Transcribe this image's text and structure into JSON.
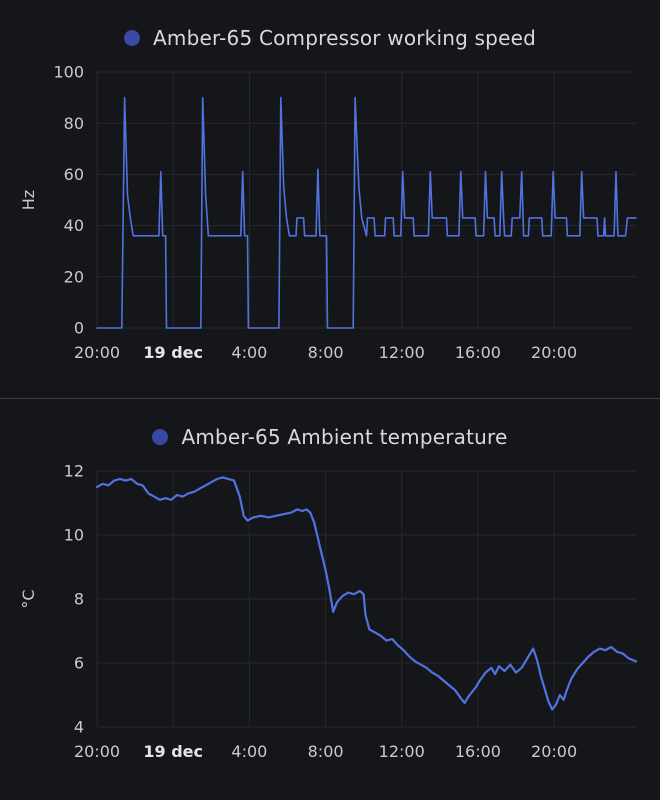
{
  "page": {
    "background": "#141619",
    "divider_color": "#3a3d42"
  },
  "chart_data": [
    {
      "type": "line",
      "title": "Amber-65 Compressor working speed",
      "ylabel": "Hz",
      "ylim": [
        0,
        100
      ],
      "yticks": [
        0,
        20,
        40,
        60,
        80,
        100
      ],
      "xlim": [
        0,
        28.3
      ],
      "xticks": [
        {
          "t": 0,
          "label": "20:00"
        },
        {
          "t": 4,
          "label": "19 dec",
          "bold": true
        },
        {
          "t": 8,
          "label": "4:00"
        },
        {
          "t": 12,
          "label": "8:00"
        },
        {
          "t": 16,
          "label": "12:00"
        },
        {
          "t": 20,
          "label": "16:00"
        },
        {
          "t": 24,
          "label": "20:00"
        }
      ],
      "grid_color": "#26282d",
      "tick_color": "#c9cacc",
      "day_color": "#e4e5e7",
      "legend_color": "#3a49a3",
      "series": [
        {
          "name": "Amber-65 Compressor working speed",
          "color": "#5272e0",
          "width": 1.6,
          "points": [
            [
              0,
              0
            ],
            [
              1.3,
              0
            ],
            [
              1.45,
              90
            ],
            [
              1.6,
              52
            ],
            [
              1.75,
              43
            ],
            [
              1.9,
              36
            ],
            [
              3.25,
              36
            ],
            [
              3.35,
              61
            ],
            [
              3.45,
              36
            ],
            [
              3.6,
              36
            ],
            [
              3.65,
              0
            ],
            [
              5.45,
              0
            ],
            [
              5.55,
              90
            ],
            [
              5.7,
              52
            ],
            [
              5.85,
              36
            ],
            [
              7.55,
              36
            ],
            [
              7.65,
              61
            ],
            [
              7.75,
              36
            ],
            [
              7.9,
              36
            ],
            [
              7.95,
              0
            ],
            [
              9.55,
              0
            ],
            [
              9.65,
              90
            ],
            [
              9.8,
              55
            ],
            [
              9.95,
              43
            ],
            [
              10.1,
              36
            ],
            [
              10.45,
              36
            ],
            [
              10.5,
              43
            ],
            [
              10.85,
              43
            ],
            [
              10.9,
              36
            ],
            [
              11.5,
              36
            ],
            [
              11.6,
              62
            ],
            [
              11.7,
              36
            ],
            [
              12.05,
              36
            ],
            [
              12.1,
              0
            ],
            [
              13.45,
              0
            ],
            [
              13.55,
              90
            ],
            [
              13.65,
              72
            ],
            [
              13.75,
              55
            ],
            [
              13.9,
              43
            ],
            [
              14.15,
              36
            ],
            [
              14.2,
              43
            ],
            [
              14.55,
              43
            ],
            [
              14.6,
              36
            ],
            [
              15.1,
              36
            ],
            [
              15.15,
              43
            ],
            [
              15.55,
              43
            ],
            [
              15.6,
              36
            ],
            [
              15.95,
              36
            ],
            [
              16.05,
              61
            ],
            [
              16.15,
              43
            ],
            [
              16.6,
              43
            ],
            [
              16.65,
              36
            ],
            [
              17.4,
              36
            ],
            [
              17.5,
              61
            ],
            [
              17.6,
              43
            ],
            [
              18.35,
              43
            ],
            [
              18.4,
              36
            ],
            [
              19.0,
              36
            ],
            [
              19.1,
              61
            ],
            [
              19.2,
              43
            ],
            [
              19.85,
              43
            ],
            [
              19.9,
              36
            ],
            [
              20.3,
              36
            ],
            [
              20.4,
              61
            ],
            [
              20.5,
              43
            ],
            [
              20.85,
              43
            ],
            [
              20.9,
              36
            ],
            [
              21.15,
              36
            ],
            [
              21.25,
              61
            ],
            [
              21.35,
              43
            ],
            [
              21.4,
              36
            ],
            [
              21.75,
              36
            ],
            [
              21.8,
              43
            ],
            [
              22.2,
              43
            ],
            [
              22.3,
              61
            ],
            [
              22.4,
              36
            ],
            [
              22.65,
              36
            ],
            [
              22.7,
              43
            ],
            [
              23.35,
              43
            ],
            [
              23.4,
              36
            ],
            [
              23.85,
              36
            ],
            [
              23.95,
              61
            ],
            [
              24.05,
              43
            ],
            [
              24.65,
              43
            ],
            [
              24.7,
              36
            ],
            [
              25.35,
              36
            ],
            [
              25.45,
              61
            ],
            [
              25.55,
              43
            ],
            [
              26.25,
              43
            ],
            [
              26.3,
              36
            ],
            [
              26.6,
              36
            ],
            [
              26.65,
              43
            ],
            [
              26.7,
              36
            ],
            [
              27.15,
              36
            ],
            [
              27.25,
              61
            ],
            [
              27.35,
              36
            ],
            [
              27.75,
              36
            ],
            [
              27.85,
              43
            ],
            [
              28.3,
              43
            ]
          ]
        }
      ]
    },
    {
      "type": "line",
      "title": "Amber-65 Ambient temperature",
      "ylabel": "°C",
      "ylim": [
        4,
        12
      ],
      "yticks": [
        4,
        6,
        8,
        10,
        12
      ],
      "xlim": [
        0,
        28.3
      ],
      "xticks": [
        {
          "t": 0,
          "label": "20:00"
        },
        {
          "t": 4,
          "label": "19 dec",
          "bold": true
        },
        {
          "t": 8,
          "label": "4:00"
        },
        {
          "t": 12,
          "label": "8:00"
        },
        {
          "t": 16,
          "label": "12:00"
        },
        {
          "t": 20,
          "label": "16:00"
        },
        {
          "t": 24,
          "label": "20:00"
        }
      ],
      "grid_color": "#26282d",
      "tick_color": "#c9cacc",
      "day_color": "#e4e5e7",
      "legend_color": "#3a49a3",
      "series": [
        {
          "name": "Amber-65 Ambient temperature",
          "color": "#5272e0",
          "width": 2.2,
          "points": [
            [
              0,
              11.5
            ],
            [
              0.3,
              11.6
            ],
            [
              0.6,
              11.55
            ],
            [
              0.9,
              11.7
            ],
            [
              1.2,
              11.75
            ],
            [
              1.5,
              11.7
            ],
            [
              1.8,
              11.75
            ],
            [
              2.1,
              11.6
            ],
            [
              2.4,
              11.55
            ],
            [
              2.7,
              11.3
            ],
            [
              3.0,
              11.2
            ],
            [
              3.3,
              11.1
            ],
            [
              3.6,
              11.15
            ],
            [
              3.9,
              11.1
            ],
            [
              4.2,
              11.25
            ],
            [
              4.5,
              11.2
            ],
            [
              4.8,
              11.3
            ],
            [
              5.1,
              11.35
            ],
            [
              5.4,
              11.45
            ],
            [
              5.7,
              11.55
            ],
            [
              6.0,
              11.65
            ],
            [
              6.3,
              11.75
            ],
            [
              6.6,
              11.8
            ],
            [
              6.9,
              11.75
            ],
            [
              7.2,
              11.7
            ],
            [
              7.5,
              11.2
            ],
            [
              7.7,
              10.6
            ],
            [
              7.9,
              10.45
            ],
            [
              8.2,
              10.55
            ],
            [
              8.6,
              10.6
            ],
            [
              9.0,
              10.55
            ],
            [
              9.4,
              10.6
            ],
            [
              9.8,
              10.65
            ],
            [
              10.2,
              10.7
            ],
            [
              10.5,
              10.8
            ],
            [
              10.8,
              10.75
            ],
            [
              11.0,
              10.8
            ],
            [
              11.2,
              10.7
            ],
            [
              11.4,
              10.4
            ],
            [
              11.6,
              9.9
            ],
            [
              11.8,
              9.4
            ],
            [
              12.0,
              8.9
            ],
            [
              12.2,
              8.3
            ],
            [
              12.4,
              7.6
            ],
            [
              12.6,
              7.9
            ],
            [
              12.9,
              8.1
            ],
            [
              13.2,
              8.2
            ],
            [
              13.5,
              8.15
            ],
            [
              13.8,
              8.25
            ],
            [
              14.0,
              8.15
            ],
            [
              14.1,
              7.5
            ],
            [
              14.3,
              7.05
            ],
            [
              14.6,
              6.95
            ],
            [
              14.9,
              6.85
            ],
            [
              15.2,
              6.7
            ],
            [
              15.5,
              6.75
            ],
            [
              15.8,
              6.55
            ],
            [
              16.1,
              6.4
            ],
            [
              16.4,
              6.2
            ],
            [
              16.7,
              6.05
            ],
            [
              17.0,
              5.95
            ],
            [
              17.3,
              5.85
            ],
            [
              17.6,
              5.7
            ],
            [
              17.9,
              5.6
            ],
            [
              18.2,
              5.45
            ],
            [
              18.5,
              5.3
            ],
            [
              18.8,
              5.15
            ],
            [
              19.1,
              4.9
            ],
            [
              19.3,
              4.75
            ],
            [
              19.5,
              4.95
            ],
            [
              19.7,
              5.1
            ],
            [
              19.9,
              5.25
            ],
            [
              20.1,
              5.45
            ],
            [
              20.4,
              5.7
            ],
            [
              20.7,
              5.85
            ],
            [
              20.9,
              5.65
            ],
            [
              21.1,
              5.9
            ],
            [
              21.4,
              5.75
            ],
            [
              21.7,
              5.95
            ],
            [
              22.0,
              5.7
            ],
            [
              22.3,
              5.85
            ],
            [
              22.6,
              6.15
            ],
            [
              22.9,
              6.45
            ],
            [
              23.1,
              6.1
            ],
            [
              23.3,
              5.6
            ],
            [
              23.5,
              5.2
            ],
            [
              23.7,
              4.8
            ],
            [
              23.9,
              4.55
            ],
            [
              24.1,
              4.7
            ],
            [
              24.3,
              5.0
            ],
            [
              24.5,
              4.85
            ],
            [
              24.7,
              5.2
            ],
            [
              24.9,
              5.5
            ],
            [
              25.2,
              5.8
            ],
            [
              25.5,
              6.0
            ],
            [
              25.8,
              6.2
            ],
            [
              26.1,
              6.35
            ],
            [
              26.4,
              6.45
            ],
            [
              26.7,
              6.4
            ],
            [
              27.0,
              6.5
            ],
            [
              27.3,
              6.35
            ],
            [
              27.6,
              6.3
            ],
            [
              27.9,
              6.15
            ],
            [
              28.3,
              6.05
            ]
          ]
        }
      ]
    }
  ]
}
